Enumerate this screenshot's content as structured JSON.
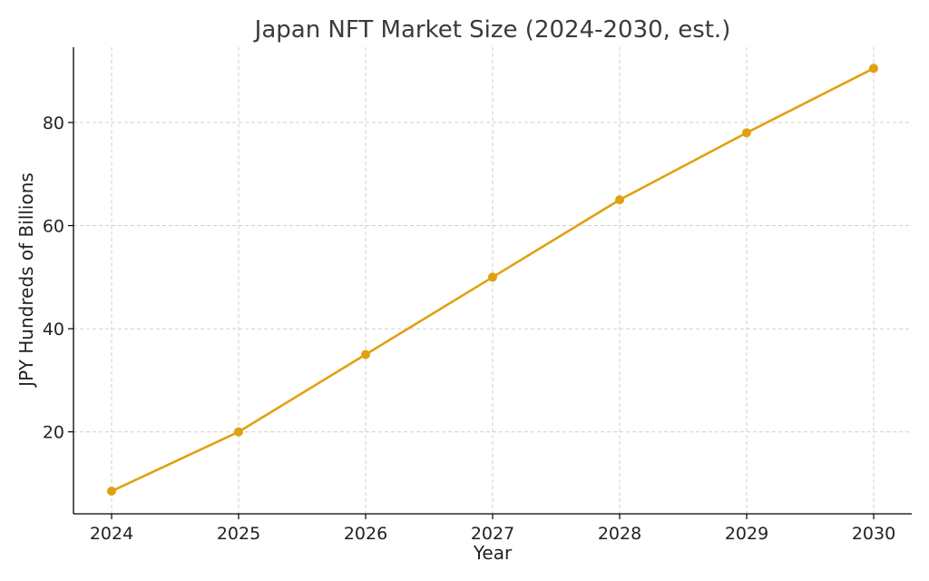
{
  "chart_data": {
    "type": "line",
    "title": "Japan NFT Market Size (2024-2030, est.)",
    "xlabel": "Year",
    "ylabel": "JPY Hundreds of Billions",
    "x": [
      2024,
      2025,
      2026,
      2027,
      2028,
      2029,
      2030
    ],
    "x_tick_labels": [
      "2024",
      "2025",
      "2026",
      "2027",
      "2028",
      "2029",
      "2030"
    ],
    "y_ticks": [
      20,
      40,
      60,
      80
    ],
    "y_tick_labels": [
      "20",
      "40",
      "60",
      "80"
    ],
    "xlim": [
      2023.7,
      2030.3
    ],
    "ylim": [
      4.1,
      94.6
    ],
    "grid": true,
    "series": [
      {
        "values": [
          8.5,
          20,
          35,
          50,
          65,
          78,
          90.5
        ],
        "color": "#E0A110",
        "marker": "circle"
      }
    ]
  }
}
